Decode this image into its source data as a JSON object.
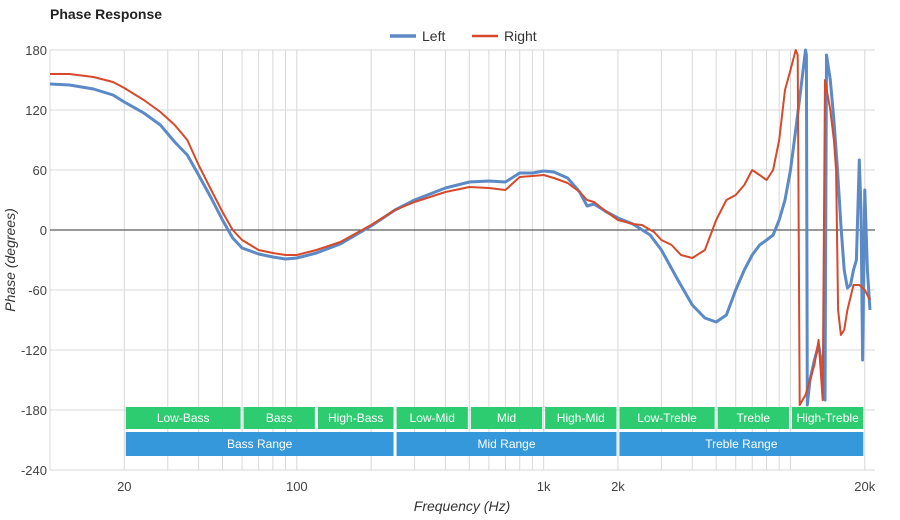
{
  "chart_data": {
    "type": "line",
    "title": "Phase Response",
    "xlabel": "Frequency (Hz)",
    "ylabel": "Phase (degrees)",
    "x_scale": "log",
    "xlim": [
      10,
      22000
    ],
    "ylim": [
      -240,
      180
    ],
    "x_tick_labels": [
      {
        "value": 20,
        "label": "20"
      },
      {
        "value": 100,
        "label": "100"
      },
      {
        "value": 1000,
        "label": "1k"
      },
      {
        "value": 2000,
        "label": "2k"
      },
      {
        "value": 20000,
        "label": "20k"
      }
    ],
    "y_ticks": [
      180,
      120,
      60,
      0,
      -60,
      -120,
      -180,
      -240
    ],
    "grid": true,
    "legend_position": "top-center",
    "series": [
      {
        "name": "Left",
        "color": "#5b8ac6",
        "points": [
          [
            10,
            146
          ],
          [
            12,
            145
          ],
          [
            15,
            141
          ],
          [
            18,
            135
          ],
          [
            20,
            128
          ],
          [
            24,
            117
          ],
          [
            28,
            105
          ],
          [
            32,
            88
          ],
          [
            36,
            75
          ],
          [
            40,
            55
          ],
          [
            45,
            32
          ],
          [
            50,
            10
          ],
          [
            55,
            -8
          ],
          [
            60,
            -18
          ],
          [
            70,
            -24
          ],
          [
            80,
            -27
          ],
          [
            90,
            -29
          ],
          [
            100,
            -28
          ],
          [
            120,
            -23
          ],
          [
            150,
            -14
          ],
          [
            200,
            4
          ],
          [
            250,
            20
          ],
          [
            300,
            30
          ],
          [
            400,
            42
          ],
          [
            500,
            48
          ],
          [
            600,
            49
          ],
          [
            700,
            48
          ],
          [
            800,
            57
          ],
          [
            900,
            57
          ],
          [
            1000,
            59
          ],
          [
            1100,
            58
          ],
          [
            1250,
            52
          ],
          [
            1400,
            38
          ],
          [
            1500,
            24
          ],
          [
            1600,
            26
          ],
          [
            1800,
            18
          ],
          [
            2000,
            12
          ],
          [
            2300,
            6
          ],
          [
            2700,
            -5
          ],
          [
            3000,
            -20
          ],
          [
            3500,
            -50
          ],
          [
            4000,
            -75
          ],
          [
            4500,
            -88
          ],
          [
            5000,
            -92
          ],
          [
            5500,
            -85
          ],
          [
            6000,
            -60
          ],
          [
            6500,
            -40
          ],
          [
            7000,
            -25
          ],
          [
            7500,
            -15
          ],
          [
            8000,
            -10
          ],
          [
            8500,
            -5
          ],
          [
            9000,
            10
          ],
          [
            9500,
            30
          ],
          [
            10000,
            60
          ],
          [
            10500,
            100
          ],
          [
            11000,
            140
          ],
          [
            11500,
            180
          ],
          [
            11600,
            175
          ],
          [
            11700,
            -175
          ],
          [
            12000,
            -150
          ],
          [
            12500,
            -130
          ],
          [
            13000,
            -115
          ],
          [
            13500,
            -140
          ],
          [
            13800,
            -170
          ],
          [
            14000,
            175
          ],
          [
            14500,
            150
          ],
          [
            15000,
            110
          ],
          [
            15500,
            60
          ],
          [
            16000,
            5
          ],
          [
            16500,
            -40
          ],
          [
            17000,
            -58
          ],
          [
            17500,
            -55
          ],
          [
            18000,
            -40
          ],
          [
            18500,
            -30
          ],
          [
            19000,
            70
          ],
          [
            19300,
            20
          ],
          [
            19600,
            -130
          ],
          [
            20000,
            40
          ],
          [
            20500,
            -40
          ],
          [
            21000,
            -80
          ]
        ]
      },
      {
        "name": "Right",
        "color": "#d64a2b",
        "points": [
          [
            10,
            156
          ],
          [
            12,
            156
          ],
          [
            15,
            153
          ],
          [
            18,
            148
          ],
          [
            20,
            142
          ],
          [
            24,
            130
          ],
          [
            28,
            118
          ],
          [
            32,
            105
          ],
          [
            36,
            90
          ],
          [
            40,
            65
          ],
          [
            45,
            40
          ],
          [
            50,
            18
          ],
          [
            55,
            0
          ],
          [
            60,
            -10
          ],
          [
            70,
            -20
          ],
          [
            80,
            -23
          ],
          [
            90,
            -25
          ],
          [
            100,
            -25
          ],
          [
            120,
            -20
          ],
          [
            150,
            -12
          ],
          [
            200,
            5
          ],
          [
            250,
            20
          ],
          [
            300,
            28
          ],
          [
            400,
            38
          ],
          [
            500,
            43
          ],
          [
            600,
            42
          ],
          [
            700,
            40
          ],
          [
            800,
            53
          ],
          [
            900,
            54
          ],
          [
            1000,
            55
          ],
          [
            1100,
            52
          ],
          [
            1250,
            47
          ],
          [
            1400,
            38
          ],
          [
            1500,
            30
          ],
          [
            1600,
            28
          ],
          [
            1800,
            18
          ],
          [
            2000,
            10
          ],
          [
            2300,
            6
          ],
          [
            2500,
            5
          ],
          [
            2800,
            -2
          ],
          [
            3000,
            -10
          ],
          [
            3300,
            -15
          ],
          [
            3600,
            -25
          ],
          [
            4000,
            -28
          ],
          [
            4500,
            -20
          ],
          [
            5000,
            10
          ],
          [
            5500,
            30
          ],
          [
            6000,
            35
          ],
          [
            6500,
            45
          ],
          [
            7000,
            60
          ],
          [
            7500,
            55
          ],
          [
            8000,
            50
          ],
          [
            8500,
            60
          ],
          [
            9000,
            90
          ],
          [
            9500,
            140
          ],
          [
            10000,
            160
          ],
          [
            10500,
            180
          ],
          [
            10700,
            175
          ],
          [
            10900,
            -175
          ],
          [
            11500,
            -165
          ],
          [
            12000,
            -150
          ],
          [
            12500,
            -135
          ],
          [
            13000,
            -110
          ],
          [
            13500,
            -170
          ],
          [
            13800,
            150
          ],
          [
            14500,
            120
          ],
          [
            15000,
            90
          ],
          [
            15300,
            60
          ],
          [
            15600,
            -80
          ],
          [
            16000,
            -105
          ],
          [
            16500,
            -100
          ],
          [
            17000,
            -80
          ],
          [
            18000,
            -55
          ],
          [
            19000,
            -55
          ],
          [
            20000,
            -60
          ],
          [
            21000,
            -70
          ]
        ]
      }
    ],
    "range_bands": {
      "fine": [
        {
          "label": "Low-Bass",
          "from": 20,
          "to": 60
        },
        {
          "label": "Bass",
          "from": 60,
          "to": 120
        },
        {
          "label": "High-Bass",
          "from": 120,
          "to": 250
        },
        {
          "label": "Low-Mid",
          "from": 250,
          "to": 500
        },
        {
          "label": "Mid",
          "from": 500,
          "to": 1000
        },
        {
          "label": "High-Mid",
          "from": 1000,
          "to": 2000
        },
        {
          "label": "Low-Treble",
          "from": 2000,
          "to": 5000
        },
        {
          "label": "Treble",
          "from": 5000,
          "to": 10000
        },
        {
          "label": "High-Treble",
          "from": 10000,
          "to": 20000
        }
      ],
      "coarse": [
        {
          "label": "Bass Range",
          "from": 20,
          "to": 250
        },
        {
          "label": "Mid Range",
          "from": 250,
          "to": 2000
        },
        {
          "label": "Treble Range",
          "from": 2000,
          "to": 20000
        }
      ],
      "fine_color": "#2ecc71",
      "coarse_color": "#3498db"
    }
  }
}
